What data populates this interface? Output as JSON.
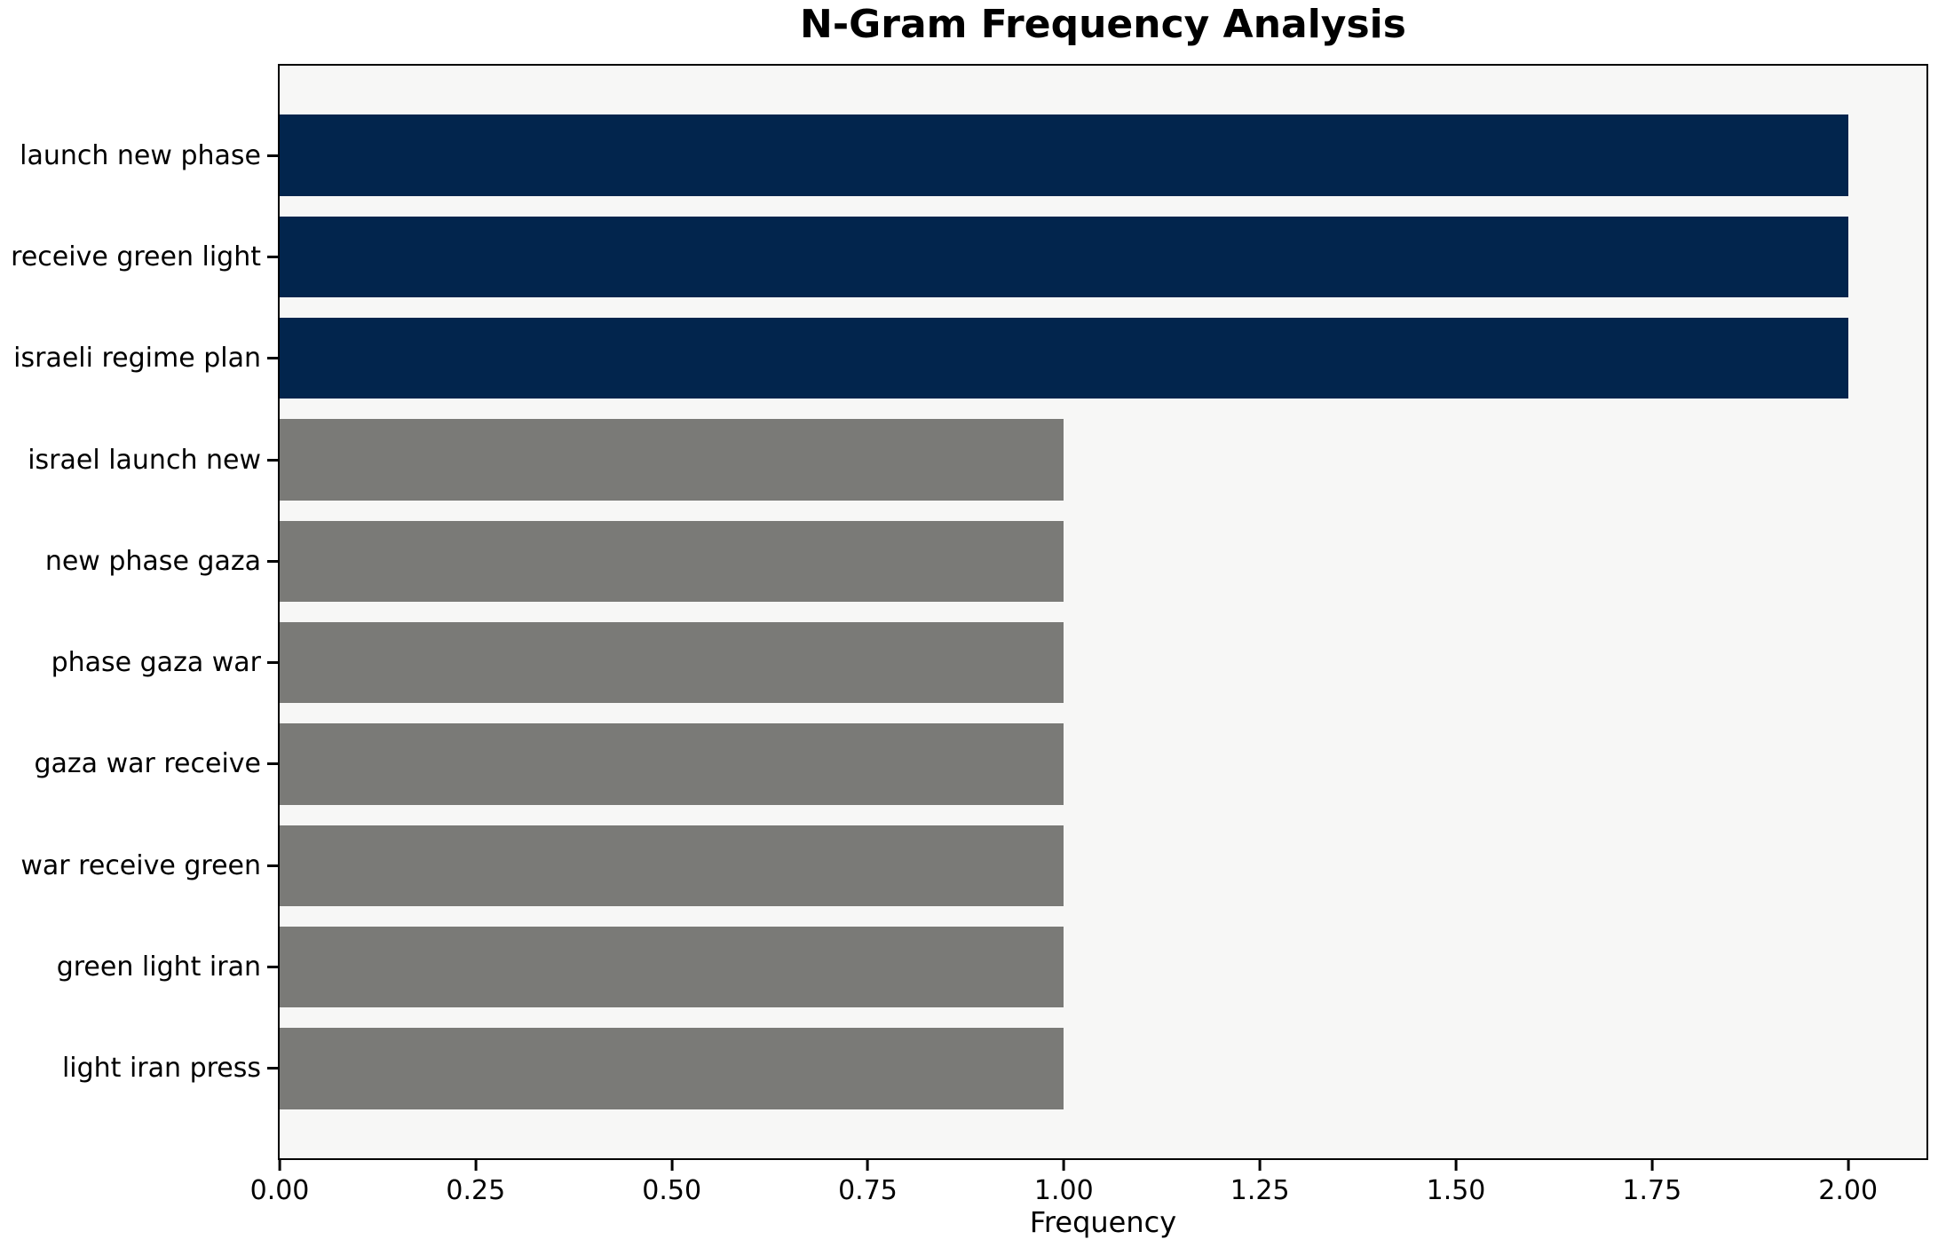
{
  "figure": {
    "background": "#ffffff",
    "plot_background": "#f7f7f6",
    "spine_color": "#000000"
  },
  "chart_data": {
    "type": "bar",
    "orientation": "horizontal",
    "title": "N-Gram Frequency Analysis",
    "xlabel": "Frequency",
    "ylabel": "",
    "categories": [
      "launch new phase",
      "receive green light",
      "israeli regime plan",
      "israel launch new",
      "new phase gaza",
      "phase gaza war",
      "gaza war receive",
      "war receive green",
      "green light iran",
      "light iran press"
    ],
    "values": [
      2,
      2,
      2,
      1,
      1,
      1,
      1,
      1,
      1,
      1
    ],
    "bar_colors": [
      "#02254d",
      "#02254d",
      "#02254d",
      "#7a7a77",
      "#7a7a77",
      "#7a7a77",
      "#7a7a77",
      "#7a7a77",
      "#7a7a77",
      "#7a7a77"
    ],
    "highlight_color": "#02254d",
    "default_color": "#7a7a77",
    "xlim": [
      0,
      2.1
    ],
    "xticks": [
      0,
      0.25,
      0.5,
      0.75,
      1.0,
      1.25,
      1.5,
      1.75,
      2.0
    ],
    "xtick_labels": [
      "0.00",
      "0.25",
      "0.50",
      "0.75",
      "1.00",
      "1.25",
      "1.50",
      "1.75",
      "2.00"
    ],
    "grid": false,
    "legend": null
  }
}
